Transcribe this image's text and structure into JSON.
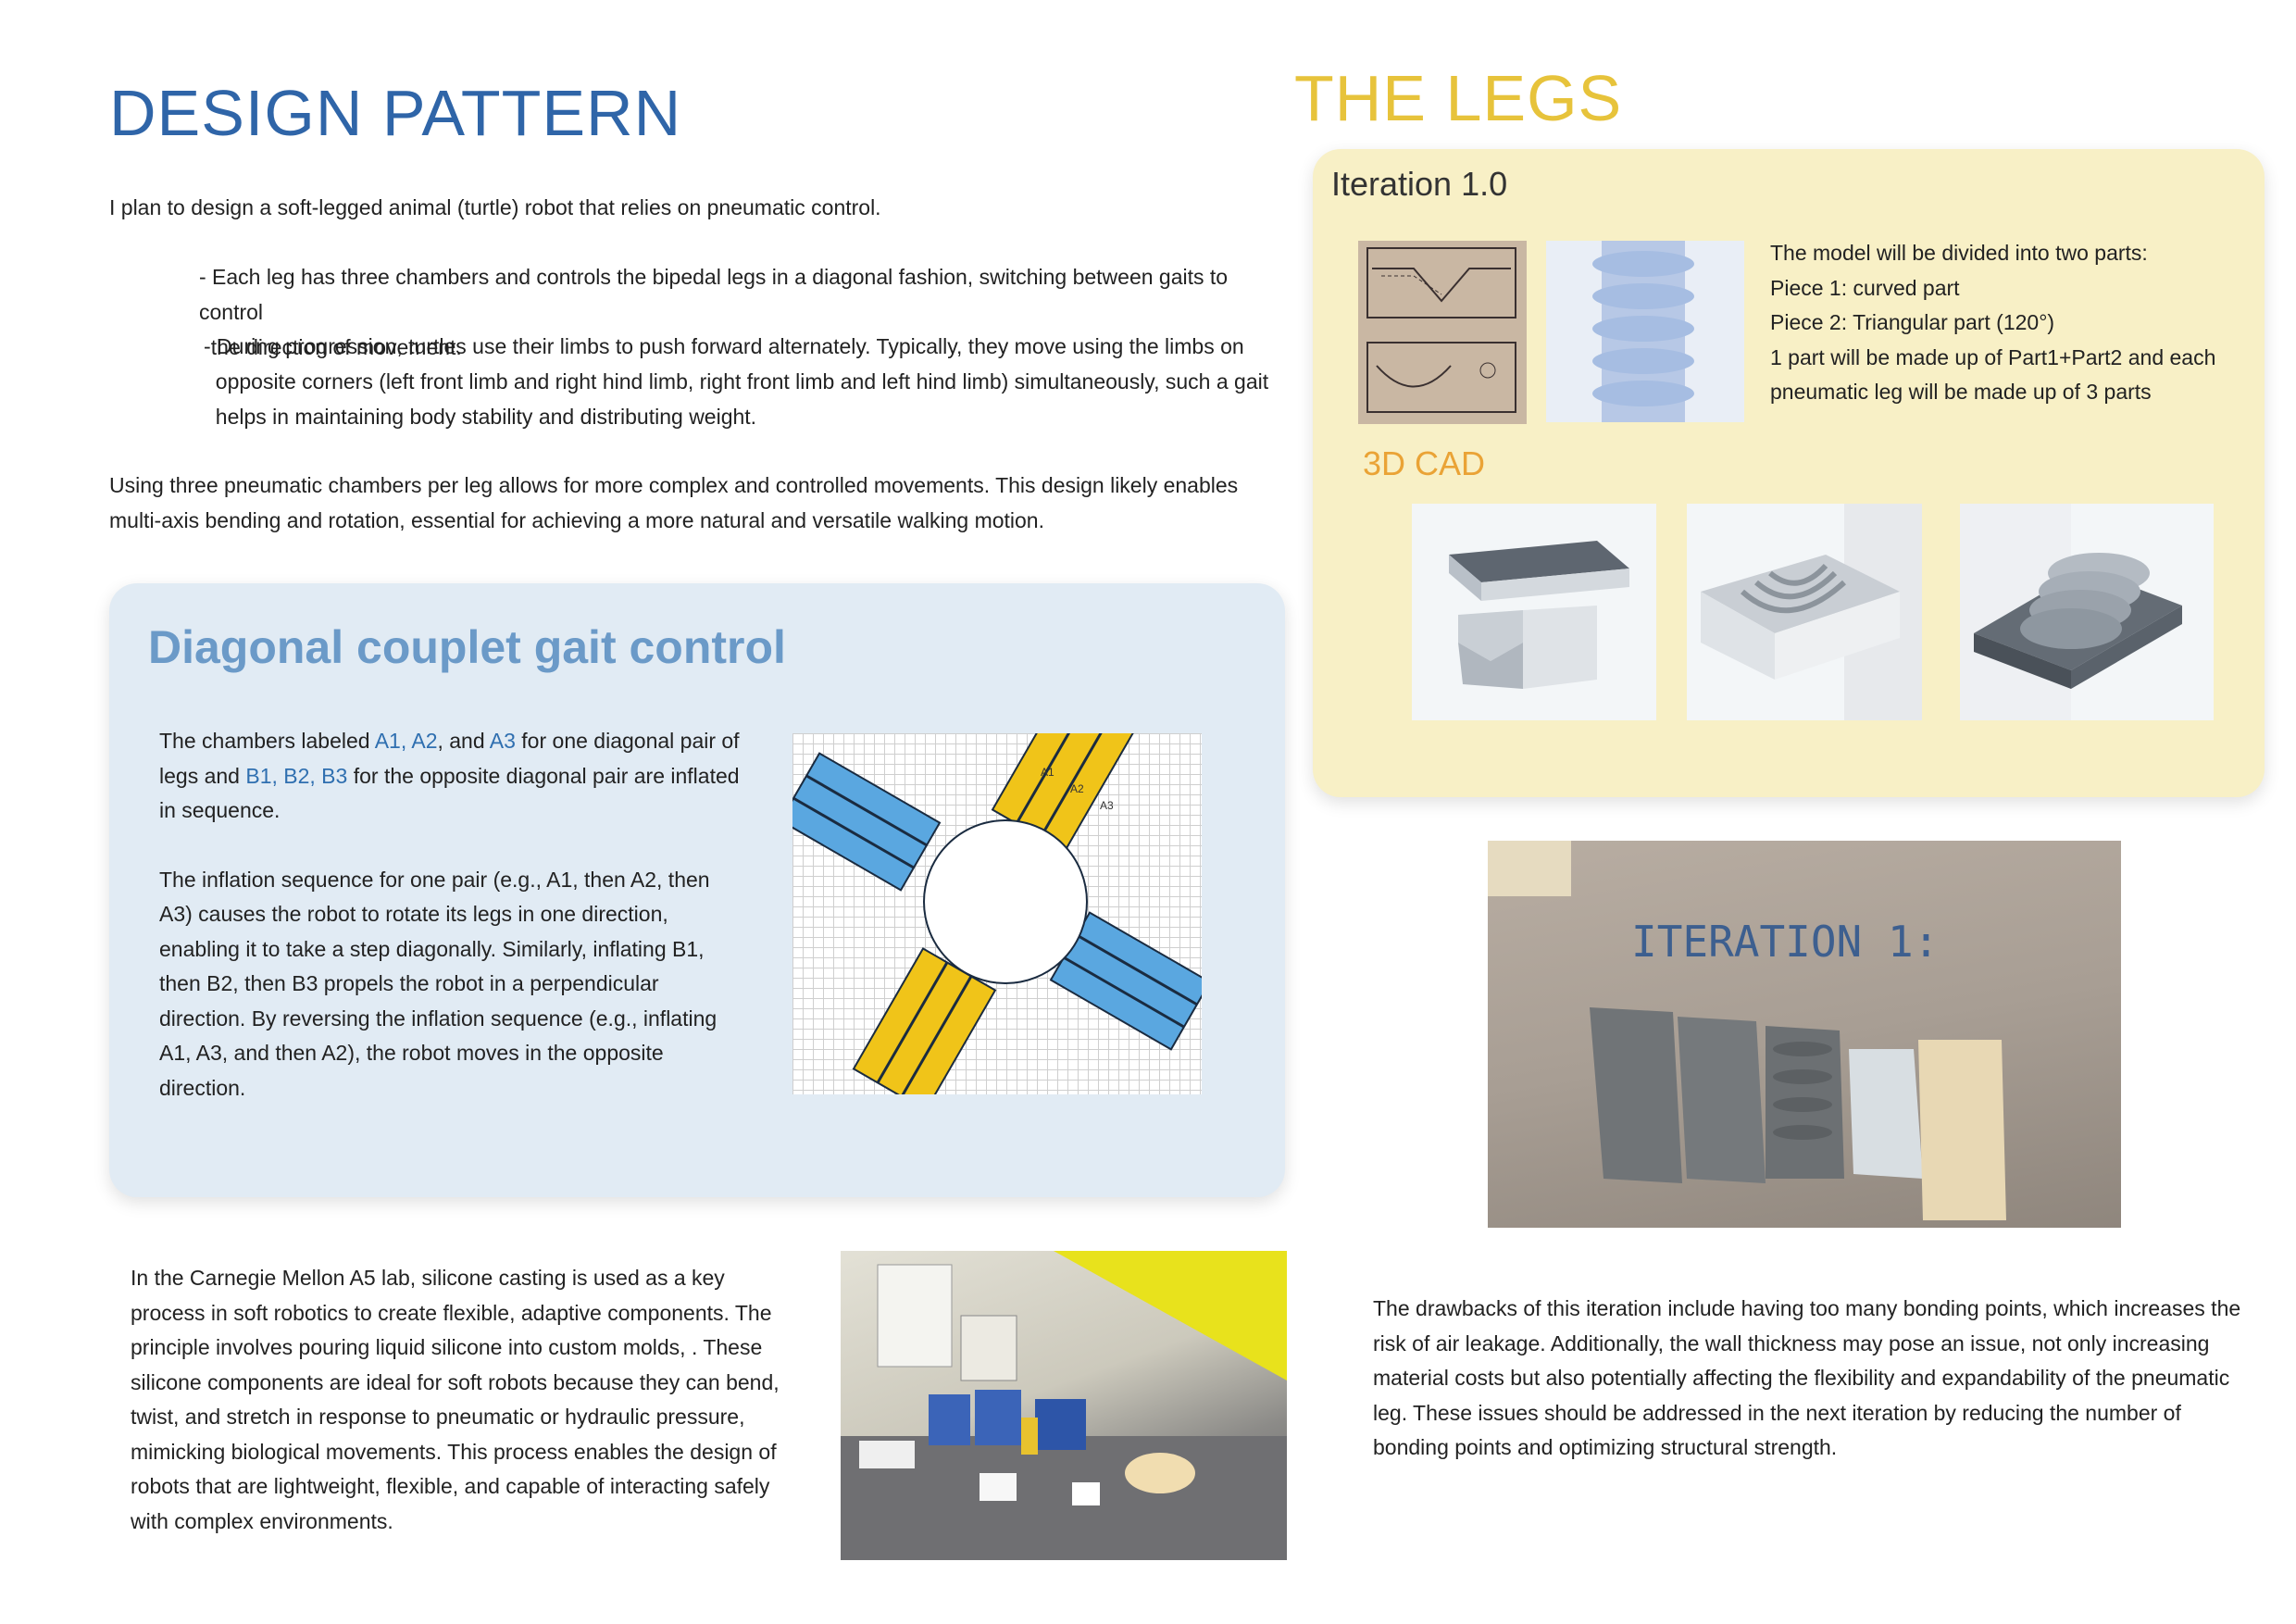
{
  "left": {
    "title": "DESIGN PATTERN",
    "intro": "I plan to design a soft-legged animal (turtle) robot that relies on pneumatic control.",
    "bullets": [
      "- Each leg has three chambers and controls the bipedal legs in a diagonal fashion, switching between gaits to control\n  the direction of movement.",
      "- During progression, turtles use their limbs to push forward alternately. Typically, they move using the limbs on\n  opposite corners (left front limb and right hind limb, right front limb and left hind limb) simultaneously, such a gait\n  helps in maintaining body stability and distributing weight."
    ],
    "paragraph": "Using three pneumatic chambers per leg allows for more complex and controlled movements. This design likely enables multi-axis bending and rotation, essential for achieving a more natural and versatile walking motion.",
    "gait": {
      "title": "Diagonal couplet gait control",
      "p1_a": "The chambers labeled ",
      "p1_hl1": "A1, A2",
      "p1_b": ", and ",
      "p1_hl2": "A3",
      "p1_c": " for one diagonal pair of legs and ",
      "p1_hl3": "B1, B2, B3",
      "p1_d": " for the opposite diagonal pair are inflated in sequence.",
      "p2": "The inflation sequence for one pair (e.g., A1, then A2, then A3) causes the robot to rotate its legs in one direction, enabling it to take a step diagonally. Similarly, inflating B1, then B2, then B3 propels the robot in a perpendicular direction. By reversing the inflation sequence (e.g., inflating A1, A3, and then A2), the robot moves in the opposite direction.",
      "labels": [
        "A1",
        "A2",
        "A3"
      ]
    },
    "cmu": "In the Carnegie Mellon A5 lab, silicone casting is used as a key process in soft robotics to create flexible, adaptive components. The principle involves pouring liquid silicone into custom molds, . These silicone components are ideal for soft robots because they can bend, twist, and stretch in response to pneumatic or hydraulic pressure, mimicking biological movements. This process enables the design of robots that are lightweight, flexible, and capable of interacting safely with complex environments."
  },
  "right": {
    "title": "THE LEGS",
    "iteration": "Iteration 1.0",
    "model_lines": [
      "The model will be divided into two parts:",
      "Piece 1: curved part",
      "Piece 2: Triangular part (120°)",
      "1 part will be made up of Part1+Part2 and each pneumatic leg will be made up of 3 parts"
    ],
    "cad_title": "3D CAD",
    "photo_caption": "ITERATION 1:",
    "drawbacks": "The drawbacks of this iteration include having too many bonding points, which increases the risk of air leakage. Additionally, the wall thickness may pose an issue, not only increasing material costs but also potentially affecting the flexibility and expandability of the pneumatic leg. These issues should be addressed in the next iteration by reducing the number of bonding points and optimizing structural strength."
  },
  "colors": {
    "title_blue": "#2f65a8",
    "title_yellow": "#e7c33b",
    "gait_panel": "#e1ebf4",
    "legs_panel": "#f8f0c6",
    "cad_orange": "#eaa336",
    "chamber_blue": "#5aa7e0",
    "chamber_yellow": "#f0c419"
  }
}
